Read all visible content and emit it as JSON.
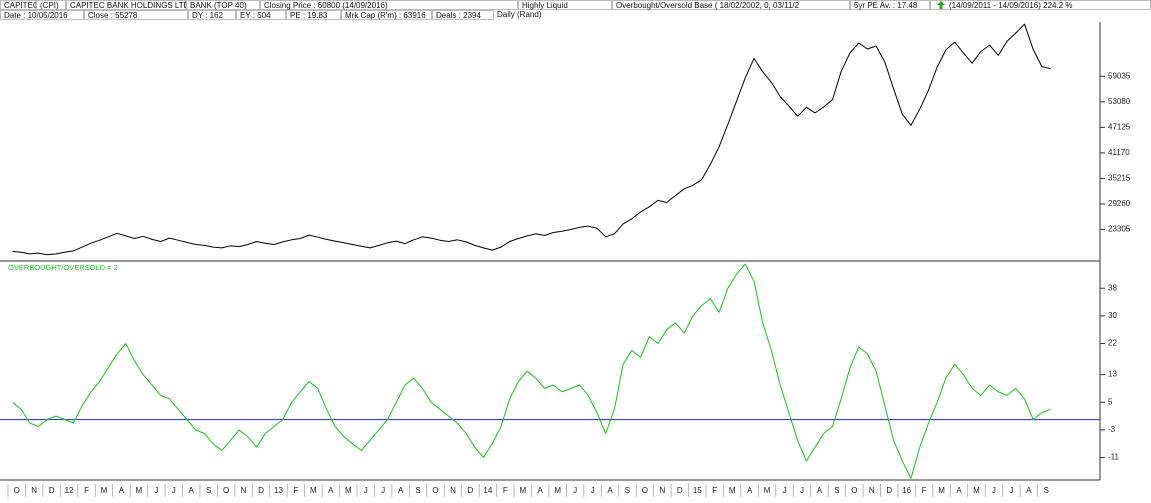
{
  "header": {
    "row1": [
      "CAPITEC",
      "(CPI)",
      "CAPITEC BANK HOLDINGS LTD.",
      "BANK (TOP 40)",
      "Closing Price : 60800  (14/09/2016)",
      "Highly Liquid",
      "Overbought/Oversold Base ( 18/02/2002, 0, 03/11/2",
      "5yr PE Av. : 17.48",
      "(14/09/2011 - 14/09/2016)  224.2 %"
    ],
    "row2": [
      "Date : 10/05/2016",
      "Close : 55278",
      "DY : 162",
      "EY : 504",
      "PE : 19.83",
      "Mrk Cap (R'm) : 63916",
      "Deals : 2394",
      "Daily (Rand)"
    ]
  },
  "x_axis_labels": [
    "O",
    "N",
    "D",
    "12",
    "F",
    "M",
    "A",
    "M",
    "J",
    "J",
    "A",
    "S",
    "O",
    "N",
    "D",
    "13",
    "F",
    "M",
    "A",
    "M",
    "J",
    "J",
    "A",
    "S",
    "O",
    "N",
    "D",
    "14",
    "F",
    "M",
    "A",
    "M",
    "J",
    "J",
    "A",
    "S",
    "O",
    "N",
    "D",
    "15",
    "F",
    "M",
    "A",
    "M",
    "J",
    "J",
    "A",
    "S",
    "O",
    "N",
    "D",
    "16",
    "F",
    "M",
    "A",
    "M",
    "J",
    "J",
    "A",
    "S"
  ],
  "chart_data": [
    {
      "type": "line",
      "color": "#000000",
      "values": [
        18200,
        18000,
        17600,
        17800,
        17400,
        17600,
        18000,
        18300,
        19200,
        20100,
        20800,
        21600,
        22400,
        21800,
        21200,
        21700,
        21000,
        20500,
        21300,
        20800,
        20300,
        19800,
        19600,
        19200,
        19000,
        19500,
        19300,
        19800,
        20500,
        20100,
        19800,
        20400,
        20900,
        21200,
        22000,
        21500,
        21000,
        20600,
        20200,
        19800,
        19400,
        19000,
        19600,
        20200,
        20600,
        20000,
        20900,
        21600,
        21300,
        20800,
        20500,
        20900,
        20400,
        19600,
        19000,
        18500,
        19200,
        20500,
        21200,
        21800,
        22300,
        21900,
        22600,
        22900,
        23300,
        23800,
        24100,
        23600,
        21600,
        22300,
        24600,
        25800,
        27400,
        28600,
        30100,
        29600,
        31200,
        32800,
        33600,
        34900,
        38500,
        42600,
        47800,
        53200,
        58700,
        63200,
        60100,
        57600,
        54300,
        52100,
        49700,
        51800,
        50500,
        51900,
        53600,
        60200,
        64500,
        66800,
        65400,
        66100,
        62300,
        56100,
        50200,
        47600,
        51400,
        55800,
        61200,
        65200,
        67000,
        64500,
        62100,
        64800,
        66300,
        63900,
        67200,
        69100,
        71200,
        65300,
        61300,
        60800
      ],
      "ylim": [
        15950,
        71700
      ],
      "yticks": [
        23305,
        29260,
        35215,
        41170,
        47125,
        53080,
        59035
      ]
    },
    {
      "type": "line",
      "label": "OVERBOUGHT/OVERSOLD = 2",
      "color": "#22bb22",
      "baseline": 0,
      "baseline_color": "#3344cc",
      "values": [
        5,
        3,
        -1,
        -2,
        0,
        1,
        0,
        -1,
        4,
        8,
        11,
        15,
        19,
        22,
        17,
        13,
        10,
        7,
        6,
        3,
        0,
        -3,
        -4,
        -7,
        -9,
        -6,
        -3,
        -5,
        -8,
        -4,
        -2,
        0,
        5,
        8,
        11,
        9,
        3,
        -2,
        -5,
        -7,
        -9,
        -6,
        -3,
        0,
        5,
        10,
        12,
        9,
        5,
        3,
        1,
        -1,
        -4,
        -8,
        -11,
        -7,
        -2,
        6,
        11,
        14,
        12,
        9,
        10,
        8,
        9,
        10,
        7,
        2,
        -4,
        3,
        16,
        20,
        18,
        24,
        22,
        26,
        28,
        25,
        30,
        33,
        35,
        31,
        38,
        42,
        45,
        40,
        28,
        20,
        10,
        2,
        -6,
        -12,
        -8,
        -4,
        -2,
        6,
        15,
        21,
        19,
        14,
        4,
        -6,
        -12,
        -17,
        -8,
        -1,
        5,
        12,
        16,
        13,
        9,
        7,
        10,
        8,
        7,
        9,
        6,
        0,
        2,
        3
      ],
      "ylim": [
        -17.5,
        45.6
      ],
      "yticks": [
        -11,
        -3,
        5,
        13,
        22,
        30,
        38
      ]
    }
  ]
}
